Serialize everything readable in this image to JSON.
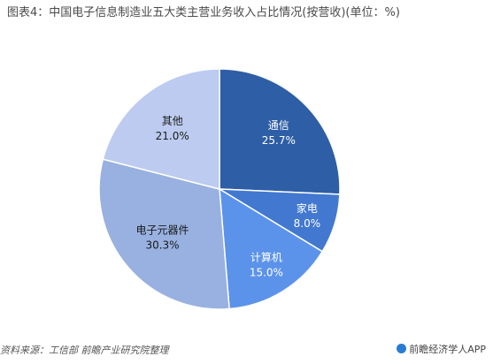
{
  "header": {
    "title": "图表4：中国电子信息制造业五大类主营业务收入占比情况(按营收)(单位：%)"
  },
  "footer": {
    "source": "资料来源：工信部 前瞻产业研究院整理",
    "brand": "前瞻经济学人APP"
  },
  "chart_data": {
    "type": "pie",
    "title": "图表4：中国电子信息制造业五大类主营业务收入占比情况(按营收)(单位：%)",
    "slices": [
      {
        "name": "通信",
        "value": 25.7,
        "label": "25.7%",
        "color": "#2e5ea5",
        "text_color": "#ffffff"
      },
      {
        "name": "家电",
        "value": 8.0,
        "label": "8.0%",
        "color": "#4278cf",
        "text_color": "#ffffff"
      },
      {
        "name": "计算机",
        "value": 15.0,
        "label": "15.0%",
        "color": "#5b93ea",
        "text_color": "#ffffff"
      },
      {
        "name": "电子元器件",
        "value": 30.3,
        "label": "30.3%",
        "color": "#98b1e0",
        "text_color": "#1a1a1a"
      },
      {
        "name": "其他",
        "value": 21.0,
        "label": "21.0%",
        "color": "#bccbef",
        "text_color": "#1a1a1a"
      }
    ]
  }
}
